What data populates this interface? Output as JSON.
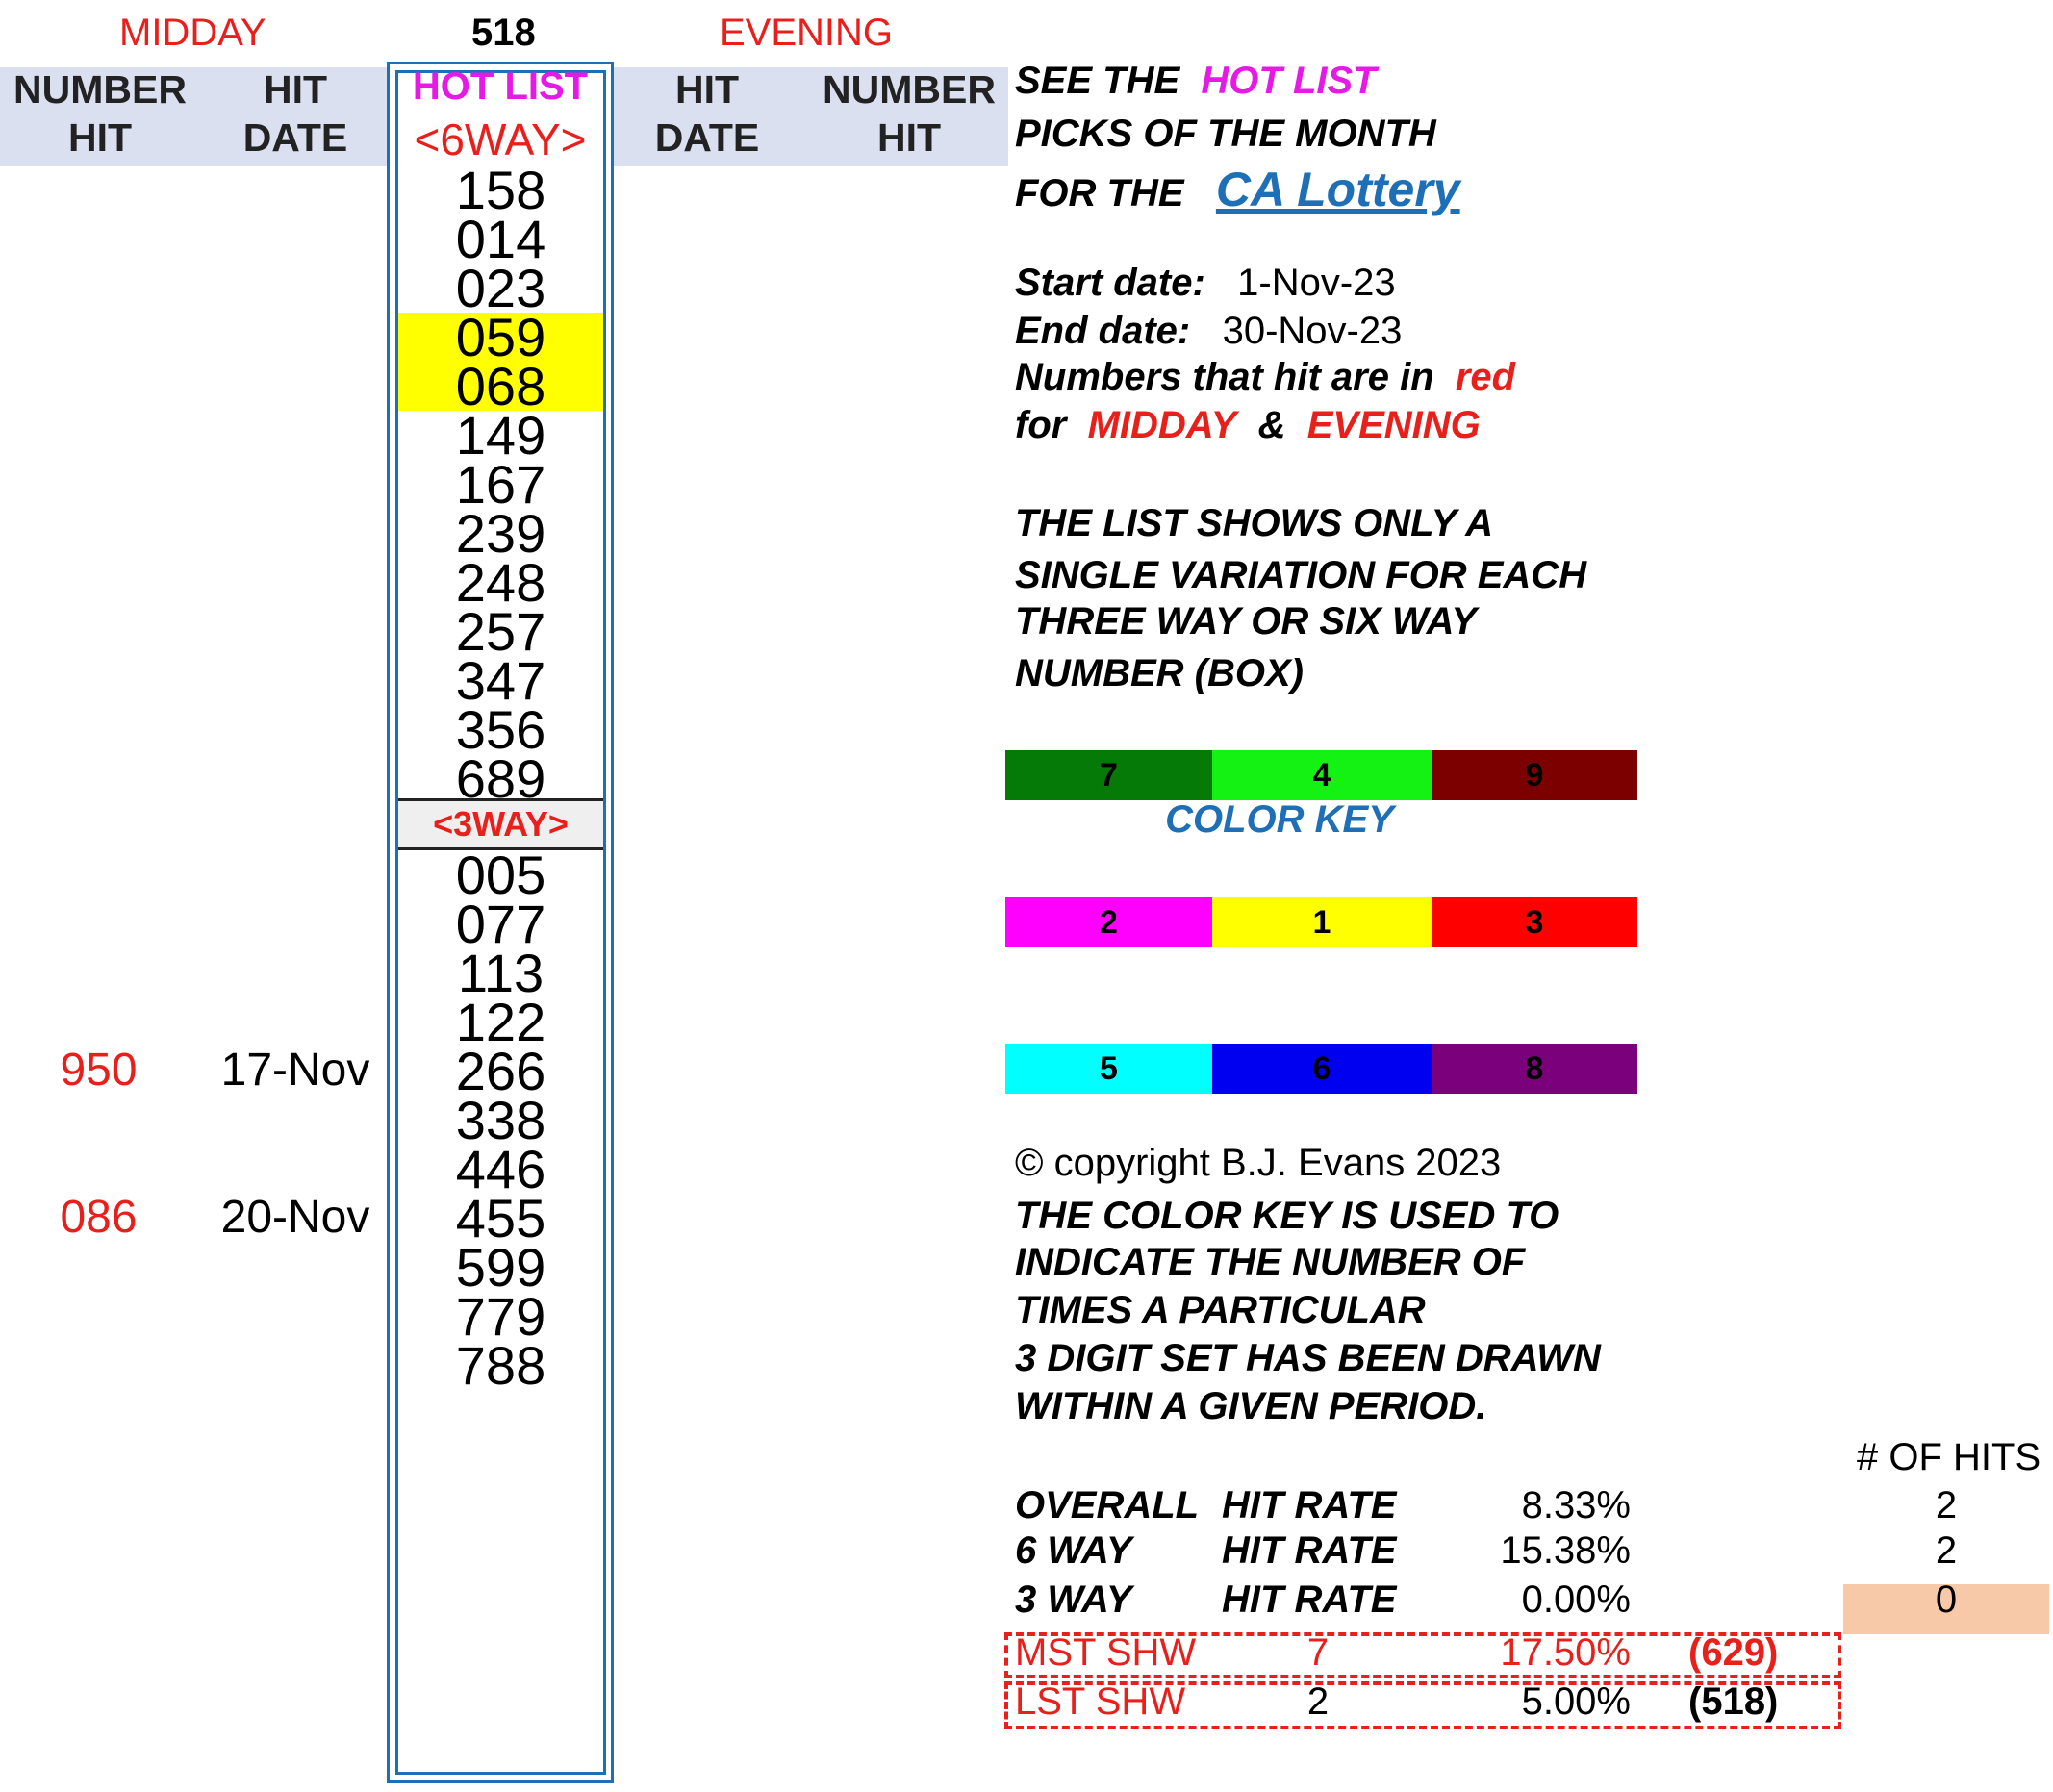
{
  "top": {
    "midday": "MIDDAY",
    "center_number": "518",
    "evening": "EVENING"
  },
  "left_header": {
    "number": "NUMBER",
    "hit": "HIT",
    "hit2": "HIT",
    "date": "DATE"
  },
  "right_header": {
    "hit": "HIT",
    "date": "DATE",
    "number": "NUMBER",
    "hit2": "HIT"
  },
  "hot_list": {
    "title": "HOT LIST",
    "six_way_label": "<6WAY>",
    "six_way": [
      "158",
      "014",
      "023",
      "059",
      "068",
      "149",
      "167",
      "239",
      "248",
      "257",
      "347",
      "356",
      "689"
    ],
    "three_way_label": "<3WAY>",
    "three_way": [
      "005",
      "077",
      "113",
      "122",
      "266",
      "338",
      "446",
      "455",
      "599",
      "779",
      "788"
    ]
  },
  "midday_hits": [
    {
      "number": "950",
      "date": "17-Nov"
    },
    {
      "number": "086",
      "date": "20-Nov"
    }
  ],
  "info": {
    "see_the": "SEE THE",
    "hot_list": "HOT LIST",
    "picks": "PICKS OF THE MONTH",
    "for_the": "FOR THE",
    "lottery_link": "CA Lottery",
    "start_label": "Start date:",
    "start_value": "1-Nov-23",
    "end_label": "End date:",
    "end_value": "30-Nov-23",
    "numbers_hit": "Numbers that hit are in",
    "red_word": "red",
    "for_word": "for",
    "midday": "MIDDAY",
    "amp": "&",
    "evening": "EVENING",
    "list_line1": "THE LIST SHOWS ONLY A",
    "list_line2": "SINGLE VARIATION FOR EACH",
    "list_line3": "THREE WAY OR SIX WAY",
    "list_line4": "NUMBER (BOX)"
  },
  "color_key": {
    "label": "COLOR KEY",
    "rows": [
      [
        {
          "n": "7",
          "color": "#067a06"
        },
        {
          "n": "4",
          "color": "#14f214"
        },
        {
          "n": "9",
          "color": "#7c0000"
        }
      ],
      [
        {
          "n": "2",
          "color": "#ff00ff"
        },
        {
          "n": "1",
          "color": "#ffff00"
        },
        {
          "n": "3",
          "color": "#ff0000"
        }
      ],
      [
        {
          "n": "5",
          "color": "#00ffff"
        },
        {
          "n": "6",
          "color": "#0000f0"
        },
        {
          "n": "8",
          "color": "#7b007b"
        }
      ]
    ]
  },
  "copyright": "© copyright B.J. Evans 2023",
  "key_text": {
    "line1": "THE COLOR KEY IS USED TO",
    "line2": "INDICATE THE NUMBER OF",
    "line3": "TIMES A PARTICULAR",
    "line4": "3 DIGIT SET HAS BEEN DRAWN",
    "line5": "WITHIN A GIVEN PERIOD."
  },
  "stats": {
    "hits_header": "# OF HITS",
    "rows": [
      {
        "label1": "OVERALL",
        "label2": "HIT RATE",
        "pct": "8.33%",
        "hits": "2"
      },
      {
        "label1": "6 WAY",
        "label2": "HIT RATE",
        "pct": "15.38%",
        "hits": "2"
      },
      {
        "label1": "3 WAY",
        "label2": "HIT RATE",
        "pct": "0.00%",
        "hits": "0"
      }
    ],
    "most_shown": {
      "label": "MST SHW",
      "count": "7",
      "pct": "17.50%",
      "number": "(629)"
    },
    "least_shown": {
      "label": "LST SHW",
      "count": "2",
      "pct": "5.00%",
      "number": "(518)"
    }
  }
}
